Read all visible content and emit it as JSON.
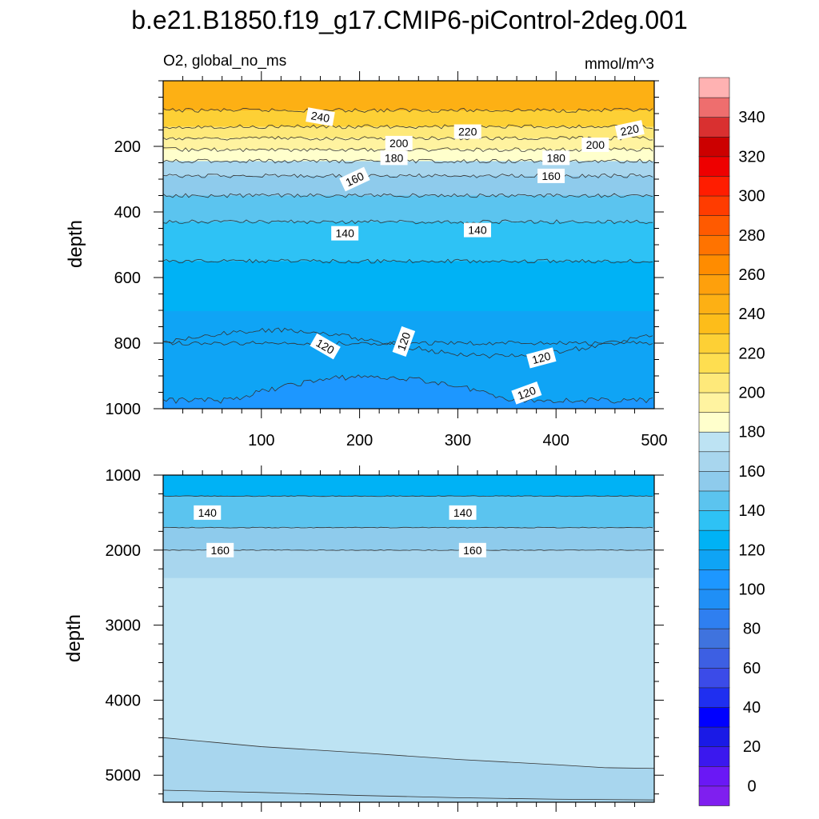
{
  "chart_data": {
    "type": "heatmap",
    "title": "b.e21.B1850.f19_g17.CMIP6-piControl-2deg.001",
    "subtitle_left": "O2, global_no_ms",
    "subtitle_right": "mmol/m^3",
    "ylabel": "depth",
    "xlabel": "",
    "colorbar": {
      "levels": [
        0,
        10,
        20,
        30,
        40,
        50,
        60,
        70,
        80,
        90,
        100,
        110,
        120,
        130,
        140,
        150,
        160,
        170,
        180,
        190,
        200,
        210,
        220,
        230,
        240,
        250,
        260,
        270,
        280,
        290,
        300,
        310,
        320,
        330,
        340,
        350
      ],
      "colors": [
        "#7f1fef",
        "#6a18f5",
        "#3b18ee",
        "#1a1ae6",
        "#0000ff",
        "#1f2ff0",
        "#3b4be8",
        "#3d5fe3",
        "#3f73de",
        "#2f7ff0",
        "#1f8ff6",
        "#1d97ff",
        "#0fa4f5",
        "#00b2f5",
        "#2ec2f5",
        "#5bc4ef",
        "#8ecbec",
        "#a8d6ee",
        "#bde3f3",
        "#ffffcc",
        "#fff3a0",
        "#fee97a",
        "#fede50",
        "#fdd035",
        "#fdbd1a",
        "#fdb014",
        "#fea00c",
        "#ff8c00",
        "#ff7300",
        "#ff5a00",
        "#ff3c00",
        "#ff1d00",
        "#ee0000",
        "#cc0000",
        "#d93030",
        "#ee6e6e",
        "#ffb2b2"
      ],
      "tick_labels": [
        "0",
        "20",
        "40",
        "60",
        "80",
        "100",
        "120",
        "140",
        "160",
        "180",
        "200",
        "220",
        "240",
        "260",
        "280",
        "300",
        "320",
        "340"
      ]
    },
    "panels": [
      {
        "name": "upper",
        "xticks": [
          100,
          200,
          300,
          400,
          500
        ],
        "xlim": [
          0,
          500
        ],
        "ylim": [
          1000,
          0
        ],
        "yticks": [
          200,
          400,
          600,
          800,
          1000
        ],
        "bands": [
          {
            "top": 0,
            "bottom": 90,
            "value": 240
          },
          {
            "top": 90,
            "bottom": 140,
            "value": 220
          },
          {
            "top": 140,
            "bottom": 175,
            "value": 200
          },
          {
            "top": 175,
            "bottom": 210,
            "value": 190
          },
          {
            "top": 210,
            "bottom": 245,
            "value": 180
          },
          {
            "top": 245,
            "bottom": 290,
            "value": 160
          },
          {
            "top": 290,
            "bottom": 350,
            "value": 150
          },
          {
            "top": 350,
            "bottom": 430,
            "value": 140
          },
          {
            "top": 430,
            "bottom": 550,
            "value": 130
          },
          {
            "top": 550,
            "bottom": 800,
            "value": 120
          },
          {
            "top": 800,
            "bottom": 1000,
            "value": 110
          }
        ],
        "contour_labels": [
          {
            "text": "240",
            "x": 160,
            "y": 110,
            "angle": 10
          },
          {
            "text": "220",
            "x": 310,
            "y": 155
          },
          {
            "text": "220",
            "x": 475,
            "y": 150,
            "angle": -12
          },
          {
            "text": "200",
            "x": 240,
            "y": 190
          },
          {
            "text": "200",
            "x": 440,
            "y": 195
          },
          {
            "text": "180",
            "x": 235,
            "y": 235
          },
          {
            "text": "180",
            "x": 400,
            "y": 235
          },
          {
            "text": "160",
            "x": 195,
            "y": 300,
            "angle": -25
          },
          {
            "text": "160",
            "x": 395,
            "y": 290
          },
          {
            "text": "140",
            "x": 185,
            "y": 465
          },
          {
            "text": "140",
            "x": 320,
            "y": 455
          },
          {
            "text": "120",
            "x": 165,
            "y": 810,
            "angle": 30
          },
          {
            "text": "120",
            "x": 245,
            "y": 795,
            "angle": -70
          },
          {
            "text": "120",
            "x": 385,
            "y": 845,
            "angle": -15
          },
          {
            "text": "120",
            "x": 370,
            "y": 952,
            "angle": -20
          }
        ]
      },
      {
        "name": "lower",
        "xlim": [
          0,
          500
        ],
        "ylim": [
          5360,
          1000
        ],
        "yticks": [
          1000,
          2000,
          3000,
          4000,
          5000
        ],
        "bands": [
          {
            "top": 1000,
            "bottom": 1280,
            "value": 120
          },
          {
            "top": 1280,
            "bottom": 1700,
            "value": 140
          },
          {
            "top": 1700,
            "bottom": 2000,
            "value": 150
          },
          {
            "top": 2000,
            "bottom": 2350,
            "value": 160
          }
        ],
        "low_o2_boundary": {
          "x": [
            0,
            50,
            100,
            200,
            300,
            400,
            450,
            500
          ],
          "depth": [
            4500,
            4560,
            4620,
            4700,
            4790,
            4860,
            4900,
            4910
          ]
        },
        "bottom_boundary": {
          "x": [
            0,
            100,
            200,
            300,
            400,
            500
          ],
          "depth": [
            5200,
            5230,
            5270,
            5300,
            5320,
            5330
          ]
        },
        "contour_labels": [
          {
            "text": "140",
            "x": 45,
            "y": 1500
          },
          {
            "text": "140",
            "x": 305,
            "y": 1500
          },
          {
            "text": "160",
            "x": 58,
            "y": 2000
          },
          {
            "text": "160",
            "x": 315,
            "y": 2000
          }
        ]
      }
    ]
  }
}
